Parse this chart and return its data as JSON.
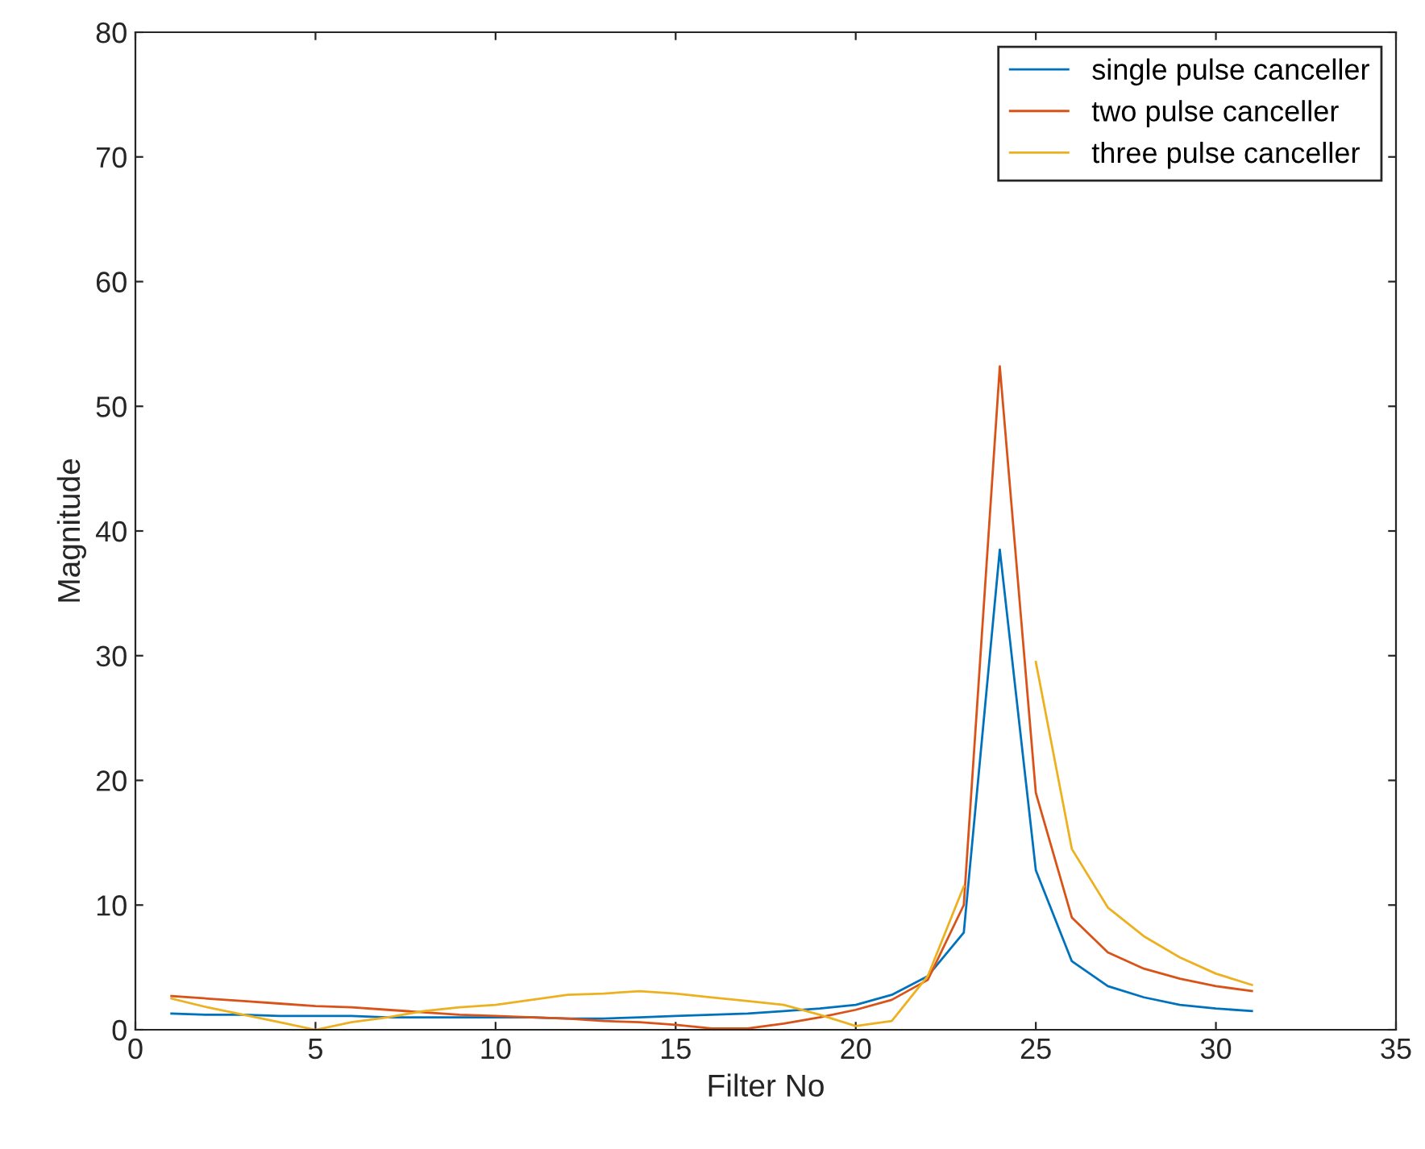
{
  "chart_data": {
    "type": "line",
    "xlabel": "Filter No",
    "ylabel": "Magnitude",
    "x": [
      1,
      2,
      3,
      4,
      5,
      6,
      7,
      8,
      9,
      10,
      11,
      12,
      13,
      14,
      15,
      16,
      17,
      18,
      19,
      20,
      21,
      22,
      23,
      24,
      25,
      26,
      27,
      28,
      29,
      30,
      31
    ],
    "series": [
      {
        "name": "single pulse canceller",
        "color": "#0072bd",
        "values": [
          1.3,
          1.2,
          1.2,
          1.1,
          1.1,
          1.1,
          1.0,
          1.0,
          1.0,
          1.0,
          1.0,
          0.9,
          0.9,
          1.0,
          1.1,
          1.2,
          1.3,
          1.5,
          1.7,
          2.0,
          2.8,
          4.3,
          7.8,
          38.5,
          12.8,
          5.5,
          3.5,
          2.6,
          2.0,
          1.7,
          1.5
        ]
      },
      {
        "name": "two pulse canceller",
        "color": "#d95319",
        "values": [
          2.7,
          2.5,
          2.3,
          2.1,
          1.9,
          1.8,
          1.6,
          1.4,
          1.2,
          1.1,
          1.0,
          0.9,
          0.7,
          0.6,
          0.4,
          0.1,
          0.1,
          0.5,
          1.0,
          1.6,
          2.4,
          4.0,
          10.0,
          53.2,
          19.0,
          9.0,
          6.2,
          4.9,
          4.1,
          3.5,
          3.1
        ]
      },
      {
        "name": "three pulse canceller",
        "color": "#edb120",
        "values": [
          2.5,
          1.8,
          1.2,
          0.6,
          0.0,
          0.6,
          1.0,
          1.5,
          1.8,
          2.0,
          2.4,
          2.8,
          2.9,
          3.1,
          2.9,
          2.6,
          2.3,
          2.0,
          1.2,
          0.3,
          0.7,
          4.3,
          11.5,
          null,
          29.5,
          14.5,
          9.8,
          7.5,
          5.8,
          4.5,
          3.6
        ]
      }
    ],
    "xlim": [
      0,
      35
    ],
    "xticks": [
      0,
      5,
      10,
      15,
      20,
      25,
      30,
      35
    ],
    "ylim": [
      0,
      80
    ],
    "yticks": [
      0,
      10,
      20,
      30,
      40,
      50,
      60,
      70,
      80
    ],
    "grid": false,
    "legend": "top right",
    "line_style": "solid",
    "marker": "none"
  }
}
